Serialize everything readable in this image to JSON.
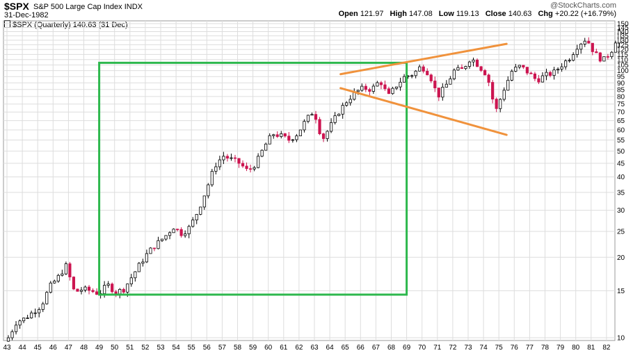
{
  "header": {
    "symbol": "$SPX",
    "name": "S&P 500 Large Cap Index",
    "exchange": "INDX",
    "date": "31-Dec-1982",
    "watermark": "@StockCharts.com",
    "legend": "$SPX (Quarterly) 140.63 (31 Dec)",
    "open_label": "Open",
    "open": "121.97",
    "high_label": "High",
    "high": "147.08",
    "low_label": "Low",
    "low": "119.13",
    "close_label": "Close",
    "close": "140.63",
    "chg_label": "Chg",
    "chg": "+20.22 (+16.79%)"
  },
  "colors": {
    "up": "#000000",
    "down": "#cc1550",
    "box": "#2db84d",
    "trendline": "#f0923c",
    "grid": "#dddddd"
  },
  "chart_data": {
    "type": "candlestick",
    "period": "quarterly",
    "log_scale": true,
    "grid": true,
    "ylim": [
      10,
      150
    ],
    "y_ticks": [
      10,
      15,
      20,
      25,
      30,
      35,
      40,
      45,
      50,
      55,
      60,
      65,
      70,
      75,
      80,
      85,
      90,
      95,
      100,
      105,
      110,
      115,
      120,
      125,
      130,
      135,
      140,
      145,
      150
    ],
    "x_ticks": [
      "43",
      "44",
      "45",
      "46",
      "47",
      "48",
      "49",
      "50",
      "51",
      "52",
      "53",
      "54",
      "55",
      "56",
      "57",
      "58",
      "59",
      "60",
      "61",
      "62",
      "63",
      "64",
      "65",
      "66",
      "67",
      "68",
      "69",
      "70",
      "71",
      "72",
      "73",
      "74",
      "75",
      "76",
      "77",
      "78",
      "79",
      "80",
      "81",
      "82"
    ],
    "anchors": [
      [
        0,
        10.0
      ],
      [
        1,
        11.5
      ],
      [
        2,
        11.8
      ],
      [
        3,
        12.5
      ],
      [
        4,
        13.2
      ],
      [
        5,
        15.5
      ],
      [
        6,
        16.8
      ],
      [
        7,
        18.6
      ],
      [
        8,
        14.8
      ],
      [
        9,
        15.2
      ],
      [
        10,
        15.0
      ],
      [
        11,
        14.6
      ],
      [
        12,
        15.8
      ],
      [
        13,
        14.8
      ],
      [
        14,
        15.2
      ],
      [
        15,
        17.0
      ],
      [
        16,
        19.0
      ],
      [
        17,
        21.0
      ],
      [
        18,
        22.5
      ],
      [
        19,
        24.0
      ],
      [
        20,
        26.0
      ],
      [
        21,
        24.5
      ],
      [
        22,
        26.0
      ],
      [
        23,
        30.0
      ],
      [
        24,
        36.0
      ],
      [
        25,
        44.0
      ],
      [
        26,
        48.0
      ],
      [
        27,
        46.5
      ],
      [
        28,
        45.0
      ],
      [
        29,
        42.0
      ],
      [
        30,
        45.0
      ],
      [
        31,
        52.0
      ],
      [
        32,
        58.0
      ],
      [
        33,
        57.0
      ],
      [
        34,
        55.0
      ],
      [
        35,
        58.0
      ],
      [
        36,
        65.0
      ],
      [
        37,
        71.0
      ],
      [
        38,
        55.0
      ],
      [
        39,
        62.0
      ],
      [
        40,
        70.0
      ],
      [
        41,
        77.0
      ],
      [
        42,
        83.0
      ],
      [
        43,
        86.0
      ],
      [
        44,
        85.0
      ],
      [
        45,
        92.0
      ],
      [
        46,
        80.0
      ],
      [
        47,
        88.0
      ],
      [
        48,
        95.0
      ],
      [
        49,
        97.0
      ],
      [
        50,
        104.0
      ],
      [
        51,
        97.0
      ],
      [
        52,
        80.0
      ],
      [
        53,
        88.0
      ],
      [
        54,
        100.0
      ],
      [
        55,
        101.0
      ],
      [
        56,
        112.0
      ],
      [
        57,
        104.0
      ],
      [
        58,
        96.0
      ],
      [
        59,
        70.0
      ],
      [
        60,
        85.0
      ],
      [
        61,
        100.0
      ],
      [
        62,
        104.0
      ],
      [
        63,
        98.0
      ],
      [
        64,
        92.0
      ],
      [
        65,
        96.0
      ],
      [
        66,
        98.0
      ],
      [
        67,
        105.0
      ],
      [
        68,
        112.0
      ],
      [
        69,
        125.0
      ],
      [
        70,
        132.0
      ],
      [
        71,
        116.0
      ],
      [
        72,
        109.0
      ],
      [
        73,
        118.0
      ],
      [
        74,
        140.63
      ]
    ],
    "n_candles": 160,
    "annotations": [
      {
        "type": "rectangle",
        "x_range": [
          "49",
          "69"
        ],
        "y_range": [
          14.5,
          107
        ]
      },
      {
        "type": "trendline",
        "from": [
          "64.7",
          97
        ],
        "to": [
          "75.5",
          126
        ]
      },
      {
        "type": "trendline",
        "from": [
          "64.7",
          86
        ],
        "to": [
          "75.5",
          57.5
        ]
      }
    ]
  }
}
